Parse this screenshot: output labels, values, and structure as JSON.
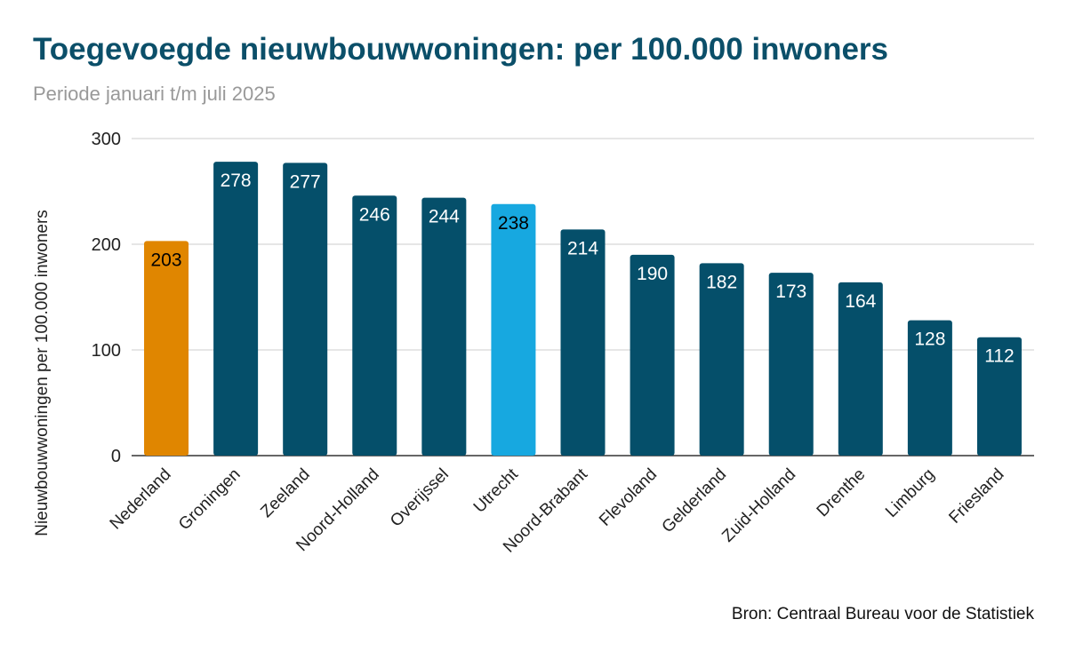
{
  "chart_data": {
    "type": "bar",
    "title": "Toegevoegde nieuwbouwwoningen: per 100.000 inwoners",
    "subtitle": "Periode januari t/m juli 2025",
    "ylabel": "Nieuwbouwwoningen per 100.000 inwoners",
    "xlabel": "",
    "ylim": [
      0,
      300
    ],
    "yticks": [
      0,
      100,
      200,
      300
    ],
    "grid": true,
    "categories": [
      "Nederland",
      "Groningen",
      "Zeeland",
      "Noord-Holland",
      "Overijssel",
      "Utrecht",
      "Noord-Brabant",
      "Flevoland",
      "Gelderland",
      "Zuid-Holland",
      "Drenthe",
      "Limburg",
      "Friesland"
    ],
    "values": [
      203,
      278,
      277,
      246,
      244,
      238,
      214,
      190,
      182,
      173,
      164,
      128,
      112
    ],
    "bar_colors": [
      "#e08600",
      "#054f6a",
      "#054f6a",
      "#054f6a",
      "#054f6a",
      "#17a8e0",
      "#054f6a",
      "#054f6a",
      "#054f6a",
      "#054f6a",
      "#054f6a",
      "#054f6a",
      "#054f6a"
    ],
    "label_colors": [
      "#000000",
      "#ffffff",
      "#ffffff",
      "#ffffff",
      "#ffffff",
      "#000000",
      "#ffffff",
      "#ffffff",
      "#ffffff",
      "#ffffff",
      "#ffffff",
      "#ffffff",
      "#ffffff"
    ],
    "source": "Bron: Centraal Bureau voor de Statistiek",
    "title_color": "#0b4f69"
  }
}
